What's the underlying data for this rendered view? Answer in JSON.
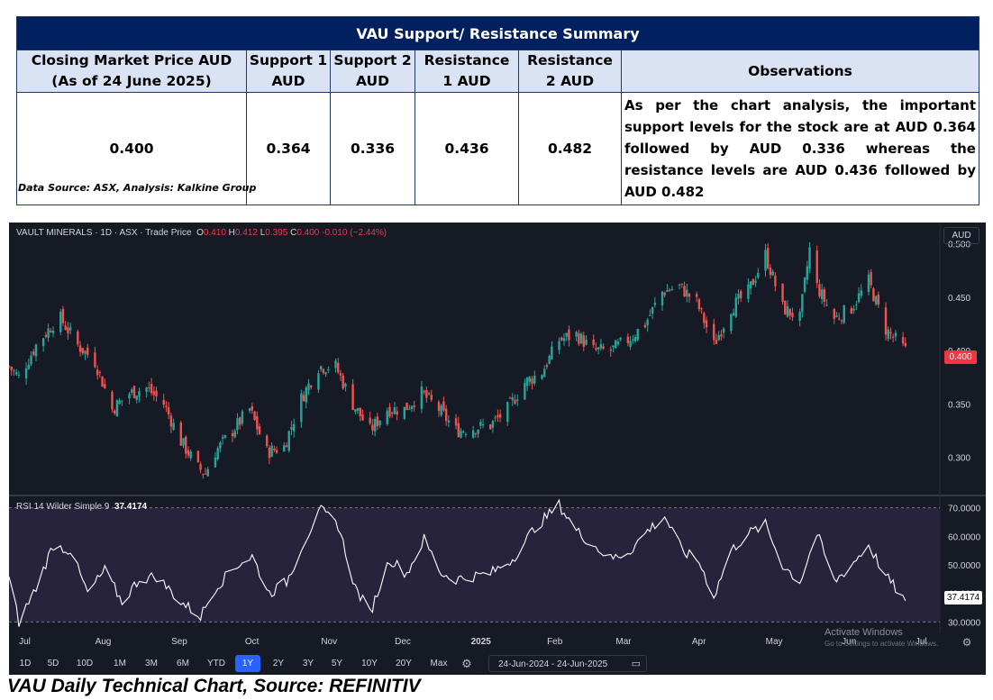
{
  "summary": {
    "title": "VAU Support/  Resistance Summary",
    "headers": [
      "Closing Market Price AUD (As of 24 June 2025)",
      "Support 1 AUD",
      "Support 2 AUD",
      "Resistance 1 AUD",
      "Resistance 2 AUD",
      "Observations"
    ],
    "values": [
      "0.400",
      "0.364",
      "0.336",
      "0.436",
      "0.482"
    ],
    "observation": "As per the chart analysis, the important support levels for the stock are at AUD 0.364 followed by AUD 0.336 whereas the resistance levels are AUD 0.436 followed by AUD 0.482"
  },
  "data_source": "Data Source: ASX, Analysis: Kalkine Group",
  "chart": {
    "symbol_line": "VAULT MINERALS · 1D · ASX · Trade Price",
    "ohlc": {
      "o_label": "O",
      "o": "0.410",
      "h_label": "H",
      "h": "0.412",
      "l_label": "L",
      "l": "0.395",
      "c_label": "C",
      "c": "0.400",
      "change": "-0.010 (−2.44%)"
    },
    "currency": "AUD",
    "last_price_label": "0.400",
    "rsi_label": "RSI 14 Wilder Simple 9",
    "rsi_value": "37.4174",
    "timeframes": [
      "1D",
      "5D",
      "10D",
      "1M",
      "3M",
      "6M",
      "YTD",
      "1Y",
      "2Y",
      "3Y",
      "5Y",
      "10Y",
      "20Y",
      "Max"
    ],
    "active_timeframe": "1Y",
    "date_range": "24-Jun-2024  -  24-Jun-2025",
    "watermark_line1": "Activate Windows",
    "watermark_line2": "Go to Settings to activate Windows.",
    "colors": {
      "background": "#161a25",
      "up": "#26a69a",
      "down": "#ef5350",
      "rsi_line": "#ffffff",
      "rsi_band": "#2a2540",
      "price_tag": "#f23645"
    }
  },
  "chart_data": {
    "type": "candlestick",
    "price_axis": {
      "ticks": [
        "0.500",
        "0.450",
        "0.400",
        "0.350",
        "0.300"
      ],
      "range": [
        0.265,
        0.52
      ]
    },
    "rsi_axis": {
      "ticks": [
        "70.0000",
        "60.0000",
        "50.0000",
        "40.0000",
        "30.0000"
      ],
      "range": [
        26,
        74
      ],
      "band": [
        30,
        70
      ]
    },
    "time_axis": {
      "range": [
        "2024-06-24",
        "2025-07-08"
      ],
      "ticks": [
        {
          "label": "Jul",
          "date": "2024-07-01"
        },
        {
          "label": "Aug",
          "date": "2024-08-01"
        },
        {
          "label": "Sep",
          "date": "2024-09-01"
        },
        {
          "label": "Oct",
          "date": "2024-10-01"
        },
        {
          "label": "Nov",
          "date": "2024-11-01"
        },
        {
          "label": "Dec",
          "date": "2024-12-01"
        },
        {
          "label": "2025",
          "date": "2025-01-01"
        },
        {
          "label": "Feb",
          "date": "2025-02-01"
        },
        {
          "label": "Mar",
          "date": "2025-03-01"
        },
        {
          "label": "Apr",
          "date": "2025-04-01"
        },
        {
          "label": "May",
          "date": "2025-05-01"
        },
        {
          "label": "Jun",
          "date": "2025-06-01"
        },
        {
          "label": "Jul",
          "date": "2025-07-01"
        }
      ]
    },
    "close_path": [
      [
        "2024-06-24",
        0.385
      ],
      [
        "2024-06-28",
        0.375
      ],
      [
        "2024-07-05",
        0.405
      ],
      [
        "2024-07-12",
        0.425
      ],
      [
        "2024-07-15",
        0.43
      ],
      [
        "2024-07-22",
        0.405
      ],
      [
        "2024-07-29",
        0.39
      ],
      [
        "2024-08-05",
        0.345
      ],
      [
        "2024-08-12",
        0.36
      ],
      [
        "2024-08-19",
        0.365
      ],
      [
        "2024-08-26",
        0.35
      ],
      [
        "2024-09-02",
        0.315
      ],
      [
        "2024-09-09",
        0.29
      ],
      [
        "2024-09-12",
        0.285
      ],
      [
        "2024-09-16",
        0.305
      ],
      [
        "2024-09-23",
        0.325
      ],
      [
        "2024-09-30",
        0.345
      ],
      [
        "2024-10-07",
        0.305
      ],
      [
        "2024-10-14",
        0.31
      ],
      [
        "2024-10-21",
        0.355
      ],
      [
        "2024-10-28",
        0.385
      ],
      [
        "2024-11-04",
        0.385
      ],
      [
        "2024-11-11",
        0.35
      ],
      [
        "2024-11-18",
        0.325
      ],
      [
        "2024-11-25",
        0.345
      ],
      [
        "2024-12-02",
        0.345
      ],
      [
        "2024-12-09",
        0.36
      ],
      [
        "2024-12-16",
        0.345
      ],
      [
        "2024-12-23",
        0.325
      ],
      [
        "2025-01-06",
        0.33
      ],
      [
        "2025-01-13",
        0.345
      ],
      [
        "2025-01-20",
        0.37
      ],
      [
        "2025-01-27",
        0.38
      ],
      [
        "2025-02-03",
        0.41
      ],
      [
        "2025-02-10",
        0.415
      ],
      [
        "2025-02-17",
        0.4
      ],
      [
        "2025-02-24",
        0.4
      ],
      [
        "2025-03-03",
        0.41
      ],
      [
        "2025-03-10",
        0.425
      ],
      [
        "2025-03-17",
        0.455
      ],
      [
        "2025-03-24",
        0.46
      ],
      [
        "2025-03-31",
        0.445
      ],
      [
        "2025-04-07",
        0.405
      ],
      [
        "2025-04-14",
        0.44
      ],
      [
        "2025-04-21",
        0.455
      ],
      [
        "2025-04-28",
        0.49
      ],
      [
        "2025-05-05",
        0.44
      ],
      [
        "2025-05-12",
        0.43
      ],
      [
        "2025-05-16",
        0.495
      ],
      [
        "2025-05-19",
        0.46
      ],
      [
        "2025-05-26",
        0.43
      ],
      [
        "2025-06-02",
        0.44
      ],
      [
        "2025-06-09",
        0.465
      ],
      [
        "2025-06-16",
        0.42
      ],
      [
        "2025-06-24",
        0.4
      ]
    ],
    "rsi_path": [
      [
        "2024-06-24",
        46
      ],
      [
        "2024-06-28",
        30
      ],
      [
        "2024-07-05",
        42
      ],
      [
        "2024-07-12",
        57
      ],
      [
        "2024-07-19",
        55
      ],
      [
        "2024-07-26",
        40
      ],
      [
        "2024-08-02",
        48
      ],
      [
        "2024-08-09",
        37
      ],
      [
        "2024-08-16",
        45
      ],
      [
        "2024-08-23",
        46
      ],
      [
        "2024-09-02",
        37
      ],
      [
        "2024-09-10",
        32
      ],
      [
        "2024-09-16",
        42
      ],
      [
        "2024-09-25",
        50
      ],
      [
        "2024-10-01",
        53
      ],
      [
        "2024-10-08",
        40
      ],
      [
        "2024-10-15",
        44
      ],
      [
        "2024-10-22",
        58
      ],
      [
        "2024-10-29",
        69
      ],
      [
        "2024-11-05",
        64
      ],
      [
        "2024-11-12",
        42
      ],
      [
        "2024-11-18",
        33
      ],
      [
        "2024-11-26",
        52
      ],
      [
        "2024-12-03",
        47
      ],
      [
        "2024-12-10",
        59
      ],
      [
        "2024-12-17",
        47
      ],
      [
        "2024-12-23",
        45
      ],
      [
        "2025-01-06",
        47
      ],
      [
        "2025-01-15",
        52
      ],
      [
        "2025-01-24",
        63
      ],
      [
        "2025-02-03",
        71
      ],
      [
        "2025-02-10",
        62
      ],
      [
        "2025-02-17",
        57
      ],
      [
        "2025-02-24",
        52
      ],
      [
        "2025-03-04",
        55
      ],
      [
        "2025-03-11",
        62
      ],
      [
        "2025-03-18",
        67
      ],
      [
        "2025-03-25",
        55
      ],
      [
        "2025-04-01",
        51
      ],
      [
        "2025-04-07",
        39
      ],
      [
        "2025-04-14",
        55
      ],
      [
        "2025-04-21",
        61
      ],
      [
        "2025-04-28",
        64
      ],
      [
        "2025-05-05",
        50
      ],
      [
        "2025-05-12",
        44
      ],
      [
        "2025-05-19",
        61
      ],
      [
        "2025-05-26",
        44
      ],
      [
        "2025-06-02",
        50
      ],
      [
        "2025-06-09",
        57
      ],
      [
        "2025-06-16",
        46
      ],
      [
        "2025-06-24",
        37.4174
      ]
    ]
  }
}
